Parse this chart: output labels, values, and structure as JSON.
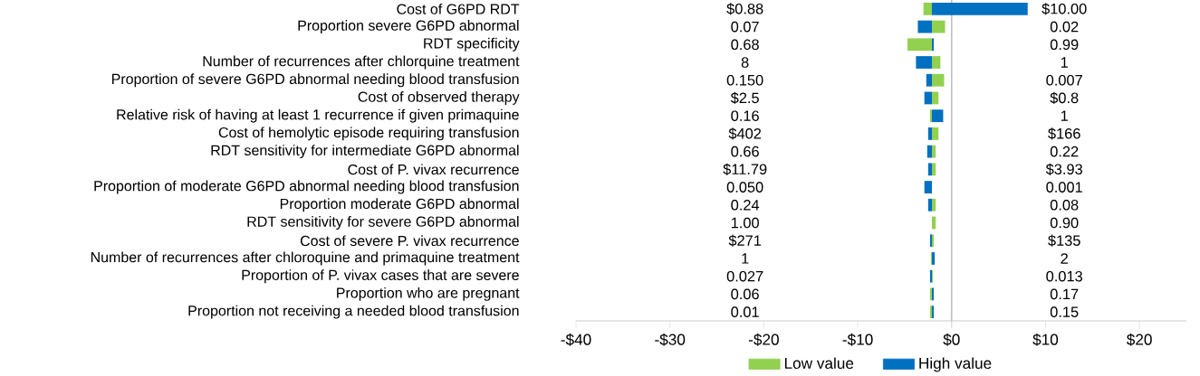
{
  "chart_data": {
    "type": "bar",
    "orientation": "horizontal",
    "categories": [
      "Cost of G6PD RDT",
      "Proportion severe G6PD abnormal",
      "RDT specificity",
      "Number of recurrences after chlorquine treatment",
      "Proportion of severe G6PD abnormal needing blood transfusion",
      "Cost of observed therapy",
      "Relative risk of having at least 1 recurrence if given primaquine",
      "Cost of hemolytic episode requiring transfusion",
      "RDT sensitivity for intermediate G6PD abnormal",
      "Cost of P. vivax recurrence",
      "Proportion of moderate G6PD abnormal needing blood transfusion",
      "Proportion moderate G6PD abnormal",
      "RDT sensitivity for severe G6PD abnormal",
      "Cost of severe P. vivax recurrence",
      "Number of recurrences after chloroquine and primaquine treatment",
      "Proportion of P. vivax cases that are severe",
      "Proportion who are pregnant",
      "Proportion not receiving a needed blood transfusion"
    ],
    "series": [
      {
        "name": "Low value",
        "color": "#92d050",
        "base": [
          -2.1,
          -2.1,
          -2.1,
          -2.1,
          -2.1,
          -2.1,
          -2.1,
          -2.1,
          -2.1,
          -2.1,
          null,
          -2.1,
          -2.1,
          -2.1,
          -2.1,
          -2.1,
          -2.1,
          -2.1
        ],
        "values": [
          -0.9,
          1.4,
          -2.6,
          0.9,
          1.3,
          0.7,
          -0.2,
          0.7,
          0.4,
          0.4,
          null,
          0.4,
          0.4,
          0.2,
          -0.1,
          0.1,
          -0.2,
          -0.2
        ]
      },
      {
        "name": "High value",
        "color": "#0070c0",
        "base": [
          -2.1,
          -2.1,
          -2.1,
          -2.1,
          -2.1,
          -2.1,
          -2.1,
          -2.1,
          -2.1,
          -2.1,
          -2.1,
          -2.1,
          null,
          -2.1,
          -2.1,
          -2.1,
          -2.1,
          -2.1
        ],
        "values": [
          10.2,
          -1.5,
          0.2,
          -1.7,
          -0.6,
          -0.8,
          1.2,
          -0.4,
          -0.5,
          -0.4,
          -0.8,
          -0.4,
          null,
          -0.2,
          0.3,
          -0.2,
          0.2,
          0.2
        ]
      }
    ],
    "xlim": [
      -40,
      25
    ],
    "xticks": [
      {
        "value": -40,
        "label": "-$40"
      },
      {
        "value": -30,
        "label": "-$30"
      },
      {
        "value": -20,
        "label": "-$20"
      },
      {
        "value": -10,
        "label": "-$10"
      },
      {
        "value": 0,
        "label": "$0"
      },
      {
        "value": 10,
        "label": "$10"
      },
      {
        "value": 20,
        "label": "$20"
      }
    ],
    "legend": "bottom",
    "annotations": [
      "$0.88",
      "$10.00",
      "0.07",
      "0.02",
      "0.68",
      "0.99",
      "8",
      "1",
      "0.150",
      "0.007",
      "$2.5",
      "$0.8",
      "0.16",
      "1",
      "$402",
      "$166",
      "0.66",
      "0.22",
      "$11.79",
      "$3.93",
      "0.050",
      "0.001",
      "0.24",
      "0.08",
      "1.00",
      "0.90",
      "$271",
      "$135",
      "1",
      "2",
      "0.027",
      "0.013",
      "0.06",
      "0.17",
      "0.01",
      "0.15"
    ]
  }
}
